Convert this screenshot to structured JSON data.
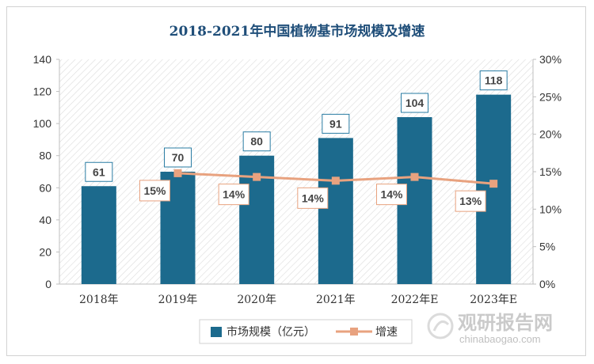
{
  "chart_data": {
    "type": "bar",
    "title": "2018-2021年中国植物基市场规模及增速",
    "categories": [
      "2018年",
      "2019年",
      "2020年",
      "2021年",
      "2022年E",
      "2023年E"
    ],
    "series": [
      {
        "name": "市场规模（亿元）",
        "kind": "bar",
        "axis": "left",
        "values": [
          61,
          70,
          80,
          91,
          104,
          118
        ],
        "labels": [
          "61",
          "70",
          "80",
          "91",
          "104",
          "118"
        ]
      },
      {
        "name": "增速",
        "kind": "line",
        "axis": "right",
        "values": [
          null,
          15,
          14,
          14,
          14,
          13
        ],
        "positions": [
          null,
          14.8,
          14.3,
          13.8,
          14.3,
          13.4
        ],
        "labels": [
          "",
          "15%",
          "14%",
          "14%",
          "14%",
          "13%"
        ]
      }
    ],
    "y_left": {
      "min": 0,
      "max": 140,
      "ticks": [
        "0",
        "20",
        "40",
        "60",
        "80",
        "100",
        "120",
        "140"
      ]
    },
    "y_right": {
      "min": 0,
      "max": 30,
      "ticks": [
        "0%",
        "5%",
        "10%",
        "15%",
        "20%",
        "25%",
        "30%"
      ]
    },
    "legend": {
      "placement": "bottom",
      "items": [
        "市场规模（亿元）",
        "增速"
      ]
    },
    "watermark": {
      "brand": "观研报告网",
      "url": "chinabaogao.com"
    },
    "colors": {
      "bar": "#1c6a8d",
      "line": "#e8a27f",
      "label_border": "#2a7ca3",
      "title": "#1f4e79",
      "line_label_border": "#e8a27f"
    }
  }
}
